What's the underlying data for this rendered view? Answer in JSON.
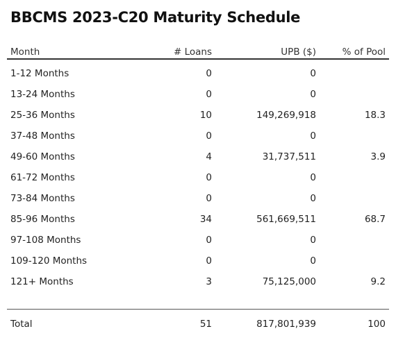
{
  "title": "BBCMS 2023-C20 Maturity Schedule",
  "columns": {
    "month": "Month",
    "loans": "# Loans",
    "upb": "UPB ($)",
    "pct": "% of Pool"
  },
  "rows": [
    {
      "month": "1-12 Months",
      "loans": "0",
      "upb": "0",
      "pct": ""
    },
    {
      "month": "13-24 Months",
      "loans": "0",
      "upb": "0",
      "pct": ""
    },
    {
      "month": "25-36 Months",
      "loans": "10",
      "upb": "149,269,918",
      "pct": "18.3"
    },
    {
      "month": "37-48 Months",
      "loans": "0",
      "upb": "0",
      "pct": ""
    },
    {
      "month": "49-60 Months",
      "loans": "4",
      "upb": "31,737,511",
      "pct": "3.9"
    },
    {
      "month": "61-72 Months",
      "loans": "0",
      "upb": "0",
      "pct": ""
    },
    {
      "month": "73-84 Months",
      "loans": "0",
      "upb": "0",
      "pct": ""
    },
    {
      "month": "85-96 Months",
      "loans": "34",
      "upb": "561,669,511",
      "pct": "68.7"
    },
    {
      "month": "97-108 Months",
      "loans": "0",
      "upb": "0",
      "pct": ""
    },
    {
      "month": "109-120 Months",
      "loans": "0",
      "upb": "0",
      "pct": ""
    },
    {
      "month": "121+ Months",
      "loans": "3",
      "upb": "75,125,000",
      "pct": "9.2"
    }
  ],
  "total": {
    "month": "Total",
    "loans": "51",
    "upb": "817,801,939",
    "pct": "100"
  }
}
